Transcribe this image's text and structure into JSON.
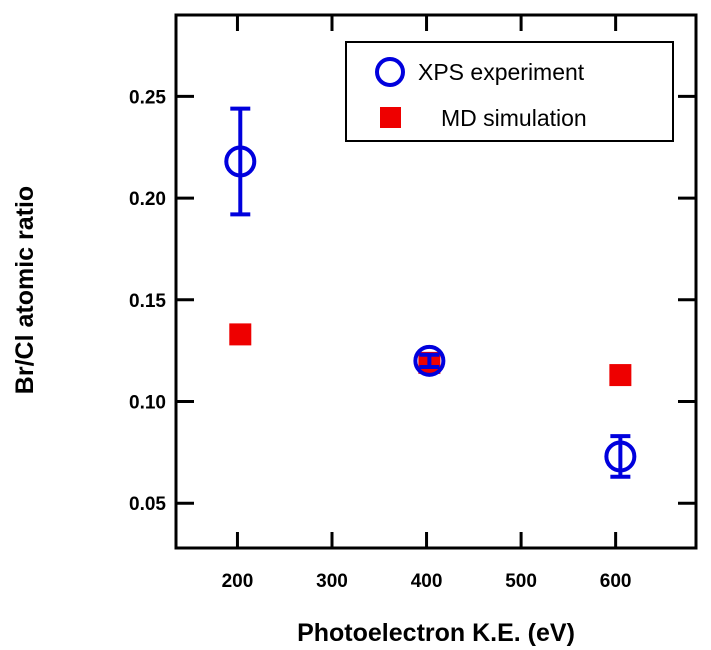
{
  "chart_data": {
    "type": "scatter",
    "xlabel": "Photoelectron K.E. (eV)",
    "ylabel": "Br/Cl atomic ratio",
    "xlim": [
      135,
      685
    ],
    "ylim": [
      0.028,
      0.29
    ],
    "x_ticks": [
      200,
      300,
      400,
      500,
      600
    ],
    "x_tick_labels": [
      "200",
      "300",
      "400",
      "500",
      "600"
    ],
    "y_ticks": [
      0.05,
      0.1,
      0.15,
      0.2,
      0.25
    ],
    "y_tick_labels": [
      "0.05",
      "0.10",
      "0.15",
      "0.20",
      "0.25"
    ],
    "grid": false,
    "legend_position": "top-right",
    "series": [
      {
        "name": "XPS experiment",
        "marker": "open-circle",
        "color": "#0000dd",
        "x": [
          203,
          403,
          605
        ],
        "y": [
          0.218,
          0.12,
          0.073
        ],
        "yerr": [
          0.026,
          0.003,
          0.01
        ]
      },
      {
        "name": "MD simulation",
        "marker": "filled-square",
        "color": "#ee0000",
        "x": [
          203,
          403,
          605
        ],
        "y": [
          0.133,
          0.119,
          0.113
        ]
      }
    ]
  }
}
